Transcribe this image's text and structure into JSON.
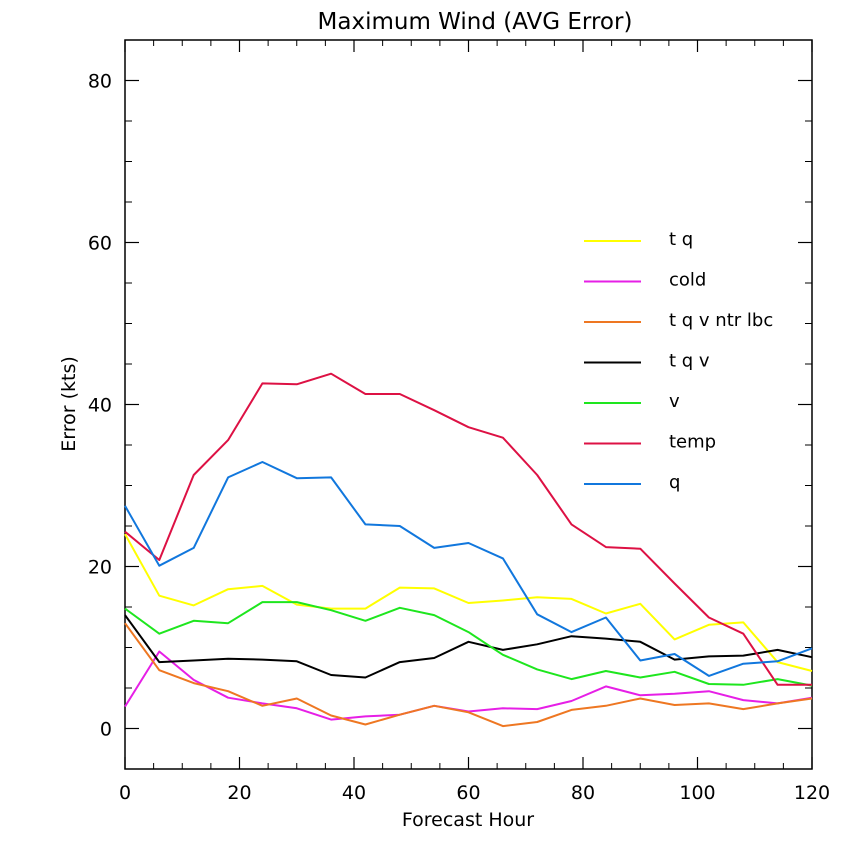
{
  "chart_data": {
    "type": "line",
    "title": "Maximum Wind (AVG Error)",
    "xlabel": "Forecast Hour",
    "ylabel": "Error (kts)",
    "xlim": [
      0,
      120
    ],
    "ylim": [
      -5,
      85
    ],
    "x_ticks": [
      0,
      20,
      40,
      60,
      80,
      100,
      120
    ],
    "y_ticks": [
      0,
      20,
      40,
      60,
      80
    ],
    "grid": false,
    "legend_position": "right",
    "x": [
      0,
      6,
      12,
      18,
      24,
      30,
      36,
      42,
      48,
      54,
      60,
      66,
      72,
      78,
      84,
      90,
      96,
      102,
      108,
      114,
      120
    ],
    "series": [
      {
        "name": "t q",
        "color": "#ffff00",
        "values": [
          24,
          16.4,
          15.2,
          17.2,
          17.6,
          15.3,
          14.8,
          14.8,
          17.4,
          17.3,
          15.5,
          15.8,
          16.2,
          16,
          14.2,
          15.4,
          11,
          12.8,
          13.1,
          8.2,
          7.1
        ]
      },
      {
        "name": "cold",
        "color": "#e61fe6",
        "values": [
          2.7,
          9.5,
          6,
          3.8,
          3.1,
          2.5,
          1.1,
          1.5,
          1.7,
          2.8,
          2.1,
          2.5,
          2.4,
          3.4,
          5.2,
          4.1,
          4.3,
          4.6,
          3.5,
          3.1,
          3.8
        ]
      },
      {
        "name": "t q v ntr lbc",
        "color": "#ee7722",
        "values": [
          13,
          7.2,
          5.6,
          4.6,
          2.8,
          3.7,
          1.6,
          0.5,
          1.7,
          2.8,
          2,
          0.3,
          0.8,
          2.3,
          2.8,
          3.7,
          2.9,
          3.1,
          2.4,
          3.1,
          3.7
        ]
      },
      {
        "name": "t q v",
        "color": "#000000",
        "values": [
          14,
          8.2,
          8.4,
          8.6,
          8.5,
          8.3,
          6.6,
          6.3,
          8.2,
          8.7,
          10.7,
          9.7,
          10.4,
          11.4,
          11.1,
          10.7,
          8.5,
          8.9,
          9,
          9.7,
          8.8
        ]
      },
      {
        "name": "v",
        "color": "#1ee61e",
        "values": [
          14.8,
          11.7,
          13.3,
          13,
          15.6,
          15.6,
          14.6,
          13.3,
          14.9,
          14,
          11.9,
          9.1,
          7.3,
          6.1,
          7.1,
          6.3,
          7,
          5.5,
          5.4,
          6.1,
          5.3
        ]
      },
      {
        "name": "temp",
        "color": "#dd1144",
        "values": [
          24.3,
          20.8,
          31.3,
          35.6,
          42.6,
          42.5,
          43.8,
          41.3,
          41.3,
          39.3,
          37.2,
          35.9,
          31.3,
          25.2,
          22.4,
          22.2,
          17.9,
          13.7,
          11.7,
          5.4,
          5.4
        ]
      },
      {
        "name": "q",
        "color": "#1177dd",
        "values": [
          27.5,
          20.1,
          22.3,
          31,
          32.9,
          30.9,
          31,
          25.2,
          25,
          22.3,
          22.9,
          21,
          14.1,
          11.9,
          13.7,
          8.4,
          9.2,
          6.5,
          8,
          8.3,
          9.9
        ]
      }
    ]
  }
}
